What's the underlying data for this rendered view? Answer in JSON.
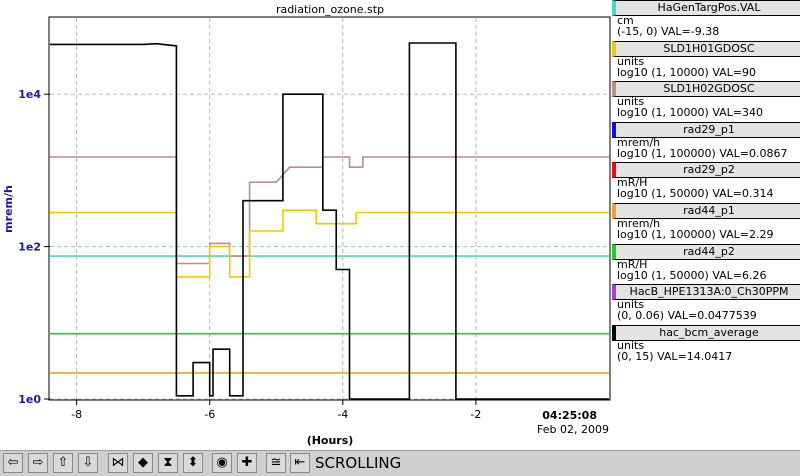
{
  "chart_data": {
    "type": "line",
    "title": "radiation_ozone.stp",
    "xlabel": "(Hours)",
    "ylabel": "mrem/h",
    "y_scale": "log",
    "ylim": [
      1,
      100000
    ],
    "xlim": [
      -8.4,
      0
    ],
    "x_ticks": [
      -8,
      -6,
      -4,
      -2
    ],
    "y_ticks": [
      {
        "value": 1,
        "label": "1e0"
      },
      {
        "value": 100,
        "label": "1e2"
      },
      {
        "value": 10000,
        "label": "1e4"
      }
    ],
    "timestamp_time": "04:25:08",
    "timestamp_date": "Feb 02, 2009",
    "grid": true,
    "series": [
      {
        "name": "HaGenTargPos.VAL",
        "color": "#4ad6c6",
        "points": [
          [
            -8.4,
            75
          ],
          [
            0,
            75
          ]
        ]
      },
      {
        "name": "rad44_p2",
        "color": "#1ed21e",
        "points": [
          [
            -8.4,
            7.2
          ],
          [
            0,
            7.2
          ]
        ]
      },
      {
        "name": "rad44_p1",
        "color": "#f0a030",
        "points": [
          [
            -8.4,
            2.2
          ],
          [
            0,
            2.2
          ]
        ]
      },
      {
        "name": "SLD1H02GDOSC",
        "color": "#b89088",
        "points": [
          [
            -8.4,
            1500
          ],
          [
            -6.5,
            1500
          ],
          [
            -6.5,
            60
          ],
          [
            -6.0,
            60
          ],
          [
            -6.0,
            110
          ],
          [
            -5.7,
            110
          ],
          [
            -5.7,
            75
          ],
          [
            -5.4,
            75
          ],
          [
            -5.4,
            700
          ],
          [
            -5.0,
            700
          ],
          [
            -4.8,
            1100
          ],
          [
            -4.3,
            1100
          ],
          [
            -4.3,
            1500
          ],
          [
            -3.9,
            1500
          ],
          [
            -3.9,
            1100
          ],
          [
            -3.7,
            1100
          ],
          [
            -3.7,
            1500
          ],
          [
            0,
            1500
          ]
        ]
      },
      {
        "name": "SLD1H01GDOSC",
        "color": "#f0c800",
        "points": [
          [
            -8.4,
            280
          ],
          [
            -6.5,
            280
          ],
          [
            -6.5,
            40
          ],
          [
            -6.0,
            40
          ],
          [
            -6.0,
            100
          ],
          [
            -5.7,
            100
          ],
          [
            -5.7,
            40
          ],
          [
            -5.4,
            40
          ],
          [
            -5.4,
            160
          ],
          [
            -4.9,
            160
          ],
          [
            -4.9,
            300
          ],
          [
            -4.4,
            300
          ],
          [
            -4.4,
            200
          ],
          [
            -3.8,
            200
          ],
          [
            -3.8,
            280
          ],
          [
            0,
            280
          ]
        ]
      },
      {
        "name": "hac_bcm_average",
        "color": "#000000",
        "points": [
          [
            -8.4,
            45000
          ],
          [
            -7.0,
            45000
          ],
          [
            -6.8,
            46000
          ],
          [
            -6.5,
            43000
          ],
          [
            -6.5,
            1.1
          ],
          [
            -6.25,
            1.1
          ],
          [
            -6.25,
            3
          ],
          [
            -6.0,
            3
          ],
          [
            -6.0,
            1.1
          ],
          [
            -5.95,
            1.1
          ],
          [
            -5.95,
            4.5
          ],
          [
            -5.7,
            4.5
          ],
          [
            -5.7,
            1.1
          ],
          [
            -5.5,
            1.1
          ],
          [
            -5.5,
            400
          ],
          [
            -4.9,
            400
          ],
          [
            -4.9,
            10000
          ],
          [
            -4.3,
            10000
          ],
          [
            -4.3,
            300
          ],
          [
            -4.1,
            300
          ],
          [
            -4.1,
            50
          ],
          [
            -3.9,
            50
          ],
          [
            -3.9,
            1
          ],
          [
            -3.0,
            1
          ],
          [
            -3.0,
            47000
          ],
          [
            -2.3,
            47000
          ],
          [
            -2.3,
            1
          ],
          [
            0,
            1
          ]
        ]
      }
    ]
  },
  "legend": [
    {
      "name": "HaGenTargPos.VAL",
      "units": "cm",
      "range": "(-15, 0) VAL=-9.38",
      "color": "#4ad6c6"
    },
    {
      "name": "SLD1H01GDOSC",
      "units": "units",
      "range": "log10 (1, 10000) VAL=90",
      "color": "#f0c800"
    },
    {
      "name": "SLD1H02GDOSC",
      "units": "units",
      "range": "log10 (1, 10000) VAL=340",
      "color": "#b89088"
    },
    {
      "name": "rad29_p1",
      "units": "mrem/h",
      "range": "log10 (1, 100000) VAL=0.0867",
      "color": "#1010e0"
    },
    {
      "name": "rad29_p2",
      "units": "mR/H",
      "range": "log10 (1, 50000) VAL=0.314",
      "color": "#e81010"
    },
    {
      "name": "rad44_p1",
      "units": "mrem/h",
      "range": "log10 (1, 100000) VAL=2.29",
      "color": "#f0a030"
    },
    {
      "name": "rad44_p2",
      "units": "mR/H",
      "range": "log10 (1, 50000) VAL=6.26",
      "color": "#1ed21e"
    },
    {
      "name": "HacB_HPE1313A:0_Ch30PPM",
      "units": "units",
      "range": "(0, 0.06) VAL=0.0477539",
      "color": "#a040e0"
    },
    {
      "name": "hac_bcm_average",
      "units": "units",
      "range": "(0, 15) VAL=14.0417",
      "color": "#000000"
    }
  ],
  "toolbar": {
    "status_label": "SCROLLING",
    "buttons": [
      {
        "icon": "arrow-left-icon",
        "glyph": "⇦"
      },
      {
        "icon": "arrow-right-icon",
        "glyph": "⇨"
      },
      {
        "icon": "arrow-up-icon",
        "glyph": "⇧"
      },
      {
        "icon": "arrow-down-icon",
        "glyph": "⇩"
      },
      {
        "icon": "compress-horizontal-icon",
        "glyph": "⋈"
      },
      {
        "icon": "expand-horizontal-icon",
        "glyph": "◆"
      },
      {
        "icon": "compress-vertical-icon",
        "glyph": "⧗"
      },
      {
        "icon": "expand-vertical-icon",
        "glyph": "⬍"
      },
      {
        "icon": "zoom-out-icon",
        "glyph": "◉"
      },
      {
        "icon": "zoom-in-icon",
        "glyph": "✚"
      },
      {
        "icon": "auto-scale-icon",
        "glyph": "≅"
      },
      {
        "icon": "scroll-mode-icon",
        "glyph": "⇤"
      }
    ]
  }
}
